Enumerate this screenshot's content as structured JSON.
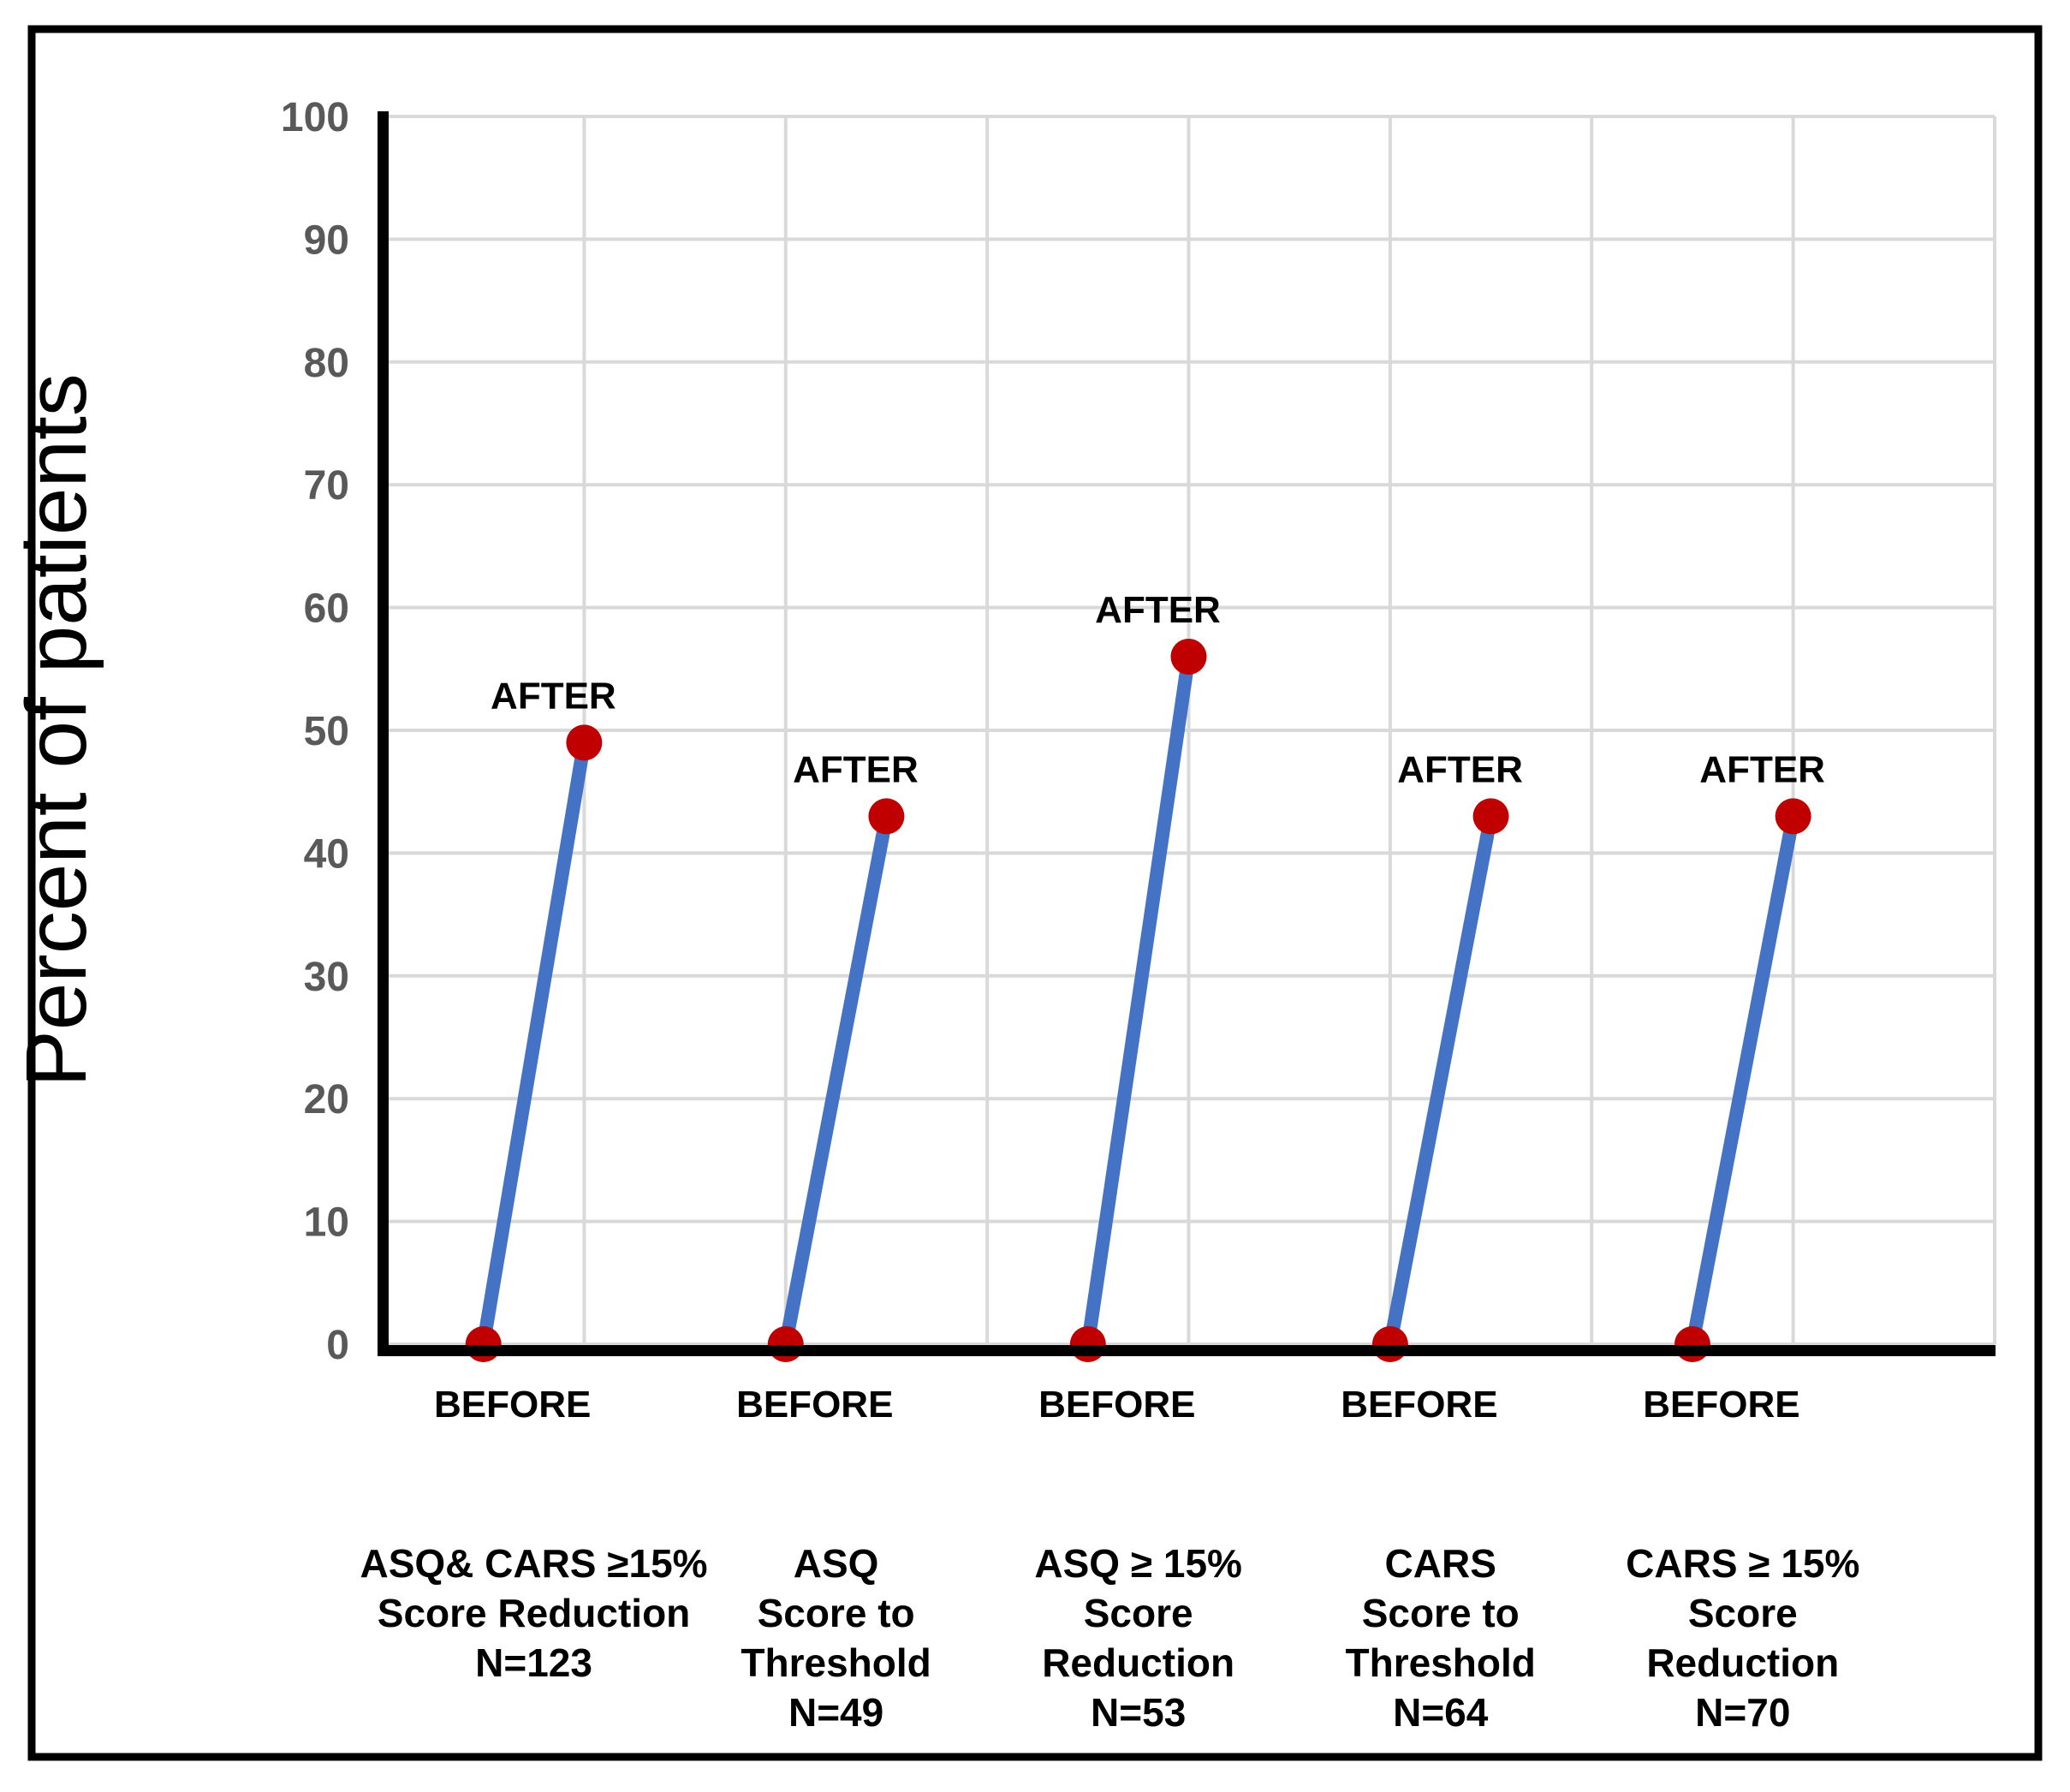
{
  "chart_data": {
    "type": "line",
    "subtype": "paired-slope-scatter",
    "title": "",
    "xlabel": "",
    "ylabel": "Percent of patients",
    "ylim": [
      0,
      100
    ],
    "y_tick_step": 10,
    "y_ticks": [
      0,
      10,
      20,
      30,
      40,
      50,
      60,
      70,
      80,
      90,
      100
    ],
    "grid": true,
    "legend": "none",
    "point_labels": {
      "before": "BEFORE",
      "after": "AFTER"
    },
    "series": [
      {
        "name": "BEFORE",
        "values": [
          0,
          0,
          0,
          0,
          0
        ]
      },
      {
        "name": "AFTER",
        "values": [
          49,
          43,
          56,
          43,
          43
        ]
      }
    ],
    "categories": [
      {
        "label_lines": [
          "ASQ& CARS ≥15%",
          "Score Reduction",
          "N=123"
        ],
        "n": 123,
        "before": 0,
        "after": 49
      },
      {
        "label_lines": [
          "ASQ",
          "Score to",
          "Threshold",
          "N=49"
        ],
        "n": 49,
        "before": 0,
        "after": 43
      },
      {
        "label_lines": [
          "ASQ ≥ 15%",
          "Score",
          "Reduction",
          "N=53"
        ],
        "n": 53,
        "before": 0,
        "after": 56
      },
      {
        "label_lines": [
          "CARS",
          "Score to",
          "Threshold",
          "N=64"
        ],
        "n": 64,
        "before": 0,
        "after": 43
      },
      {
        "label_lines": [
          "CARS ≥ 15%",
          "Score",
          "Reduction",
          "N=70"
        ],
        "n": 70,
        "before": 0,
        "after": 43
      }
    ],
    "colors": {
      "line": "#4472C4",
      "marker": "#C00000",
      "gridline": "#D9D9D9",
      "tick_label": "#595959",
      "axis": "#000000",
      "text": "#000000",
      "background": "#FFFFFF",
      "frame": "#000000"
    }
  }
}
